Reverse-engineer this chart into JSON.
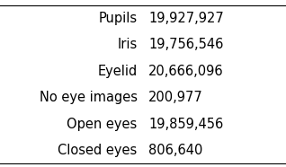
{
  "rows": [
    {
      "label": "Pupils",
      "value": "19,927,927"
    },
    {
      "label": "Iris",
      "value": "19,756,546"
    },
    {
      "label": "Eyelid",
      "value": "20,666,096"
    },
    {
      "label": "No eye images",
      "value": "200,977"
    },
    {
      "label": "Open eyes",
      "value": "19,859,456"
    },
    {
      "label": "Closed eyes",
      "value": "806,640"
    }
  ],
  "background_color": "#ffffff",
  "text_color": "#000000",
  "border_color": "#000000",
  "font_size": 10.5,
  "figsize": [
    3.18,
    1.86
  ],
  "dpi": 100
}
